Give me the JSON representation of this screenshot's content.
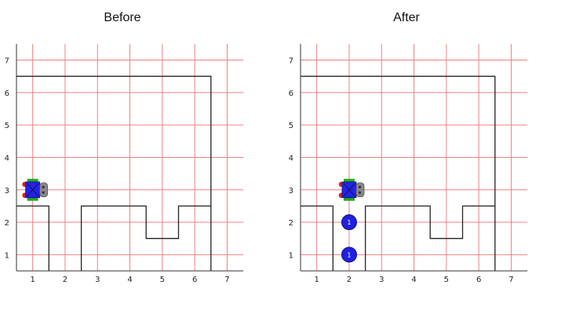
{
  "panels": [
    {
      "id": "before",
      "title": "Before",
      "robot": {
        "x": 1,
        "y": 3,
        "facing": "east"
      },
      "beepers": []
    },
    {
      "id": "after",
      "title": "After",
      "robot": {
        "x": 2,
        "y": 3,
        "facing": "east"
      },
      "beepers": [
        {
          "x": 2,
          "y": 2,
          "count": "1"
        },
        {
          "x": 2,
          "y": 1,
          "count": "1"
        }
      ]
    }
  ],
  "grid": {
    "x_ticks": [
      "1",
      "2",
      "3",
      "4",
      "5",
      "6",
      "7"
    ],
    "y_ticks": [
      "1",
      "2",
      "3",
      "4",
      "5",
      "6",
      "7"
    ],
    "xlim": [
      0.5,
      7.5
    ],
    "ylim": [
      0.5,
      7.5
    ]
  },
  "walls": [
    [
      [
        0.5,
        6.5
      ],
      [
        6.5,
        6.5
      ],
      [
        6.5,
        0.5
      ]
    ],
    [
      [
        0.5,
        2.5
      ],
      [
        1.5,
        2.5
      ],
      [
        1.5,
        0.5
      ]
    ],
    [
      [
        2.5,
        0.5
      ],
      [
        2.5,
        2.5
      ],
      [
        4.5,
        2.5
      ],
      [
        4.5,
        1.5
      ],
      [
        5.5,
        1.5
      ],
      [
        5.5,
        2.5
      ],
      [
        6.5,
        2.5
      ]
    ]
  ],
  "colors": {
    "grid": "#f08080",
    "axis": "#333333",
    "wall": "#222222",
    "robot_body": "#2222ee",
    "robot_track": "#22aa22",
    "robot_wheel": "#dd2222",
    "robot_head": "#888888",
    "beeper": "#2020e0"
  }
}
